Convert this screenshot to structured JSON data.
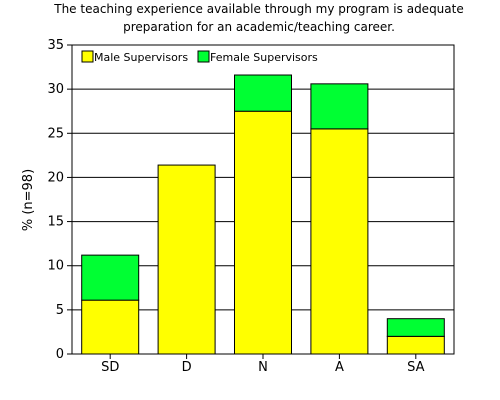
{
  "chart_data": {
    "type": "bar",
    "stacked": true,
    "title": [
      "The teaching experience available through my program is adequate",
      "preparation for an academic/teaching career."
    ],
    "xlabel": "",
    "ylabel": "% (n=98)",
    "categories": [
      "SD",
      "D",
      "N",
      "A",
      "SA"
    ],
    "series": [
      {
        "name": "Male Supervisors",
        "values": [
          6.1,
          21.4,
          27.5,
          25.5,
          2.0
        ],
        "color": "#ffff00"
      },
      {
        "name": "Female Supervisors",
        "values": [
          5.1,
          0.0,
          4.1,
          5.1,
          2.0
        ],
        "color": "#00ff33"
      }
    ],
    "ylim": [
      0,
      35
    ],
    "yticks": [
      "0",
      "5",
      "10",
      "15",
      "20",
      "25",
      "30",
      "35"
    ],
    "grid": true,
    "legend_position": "top-left"
  }
}
